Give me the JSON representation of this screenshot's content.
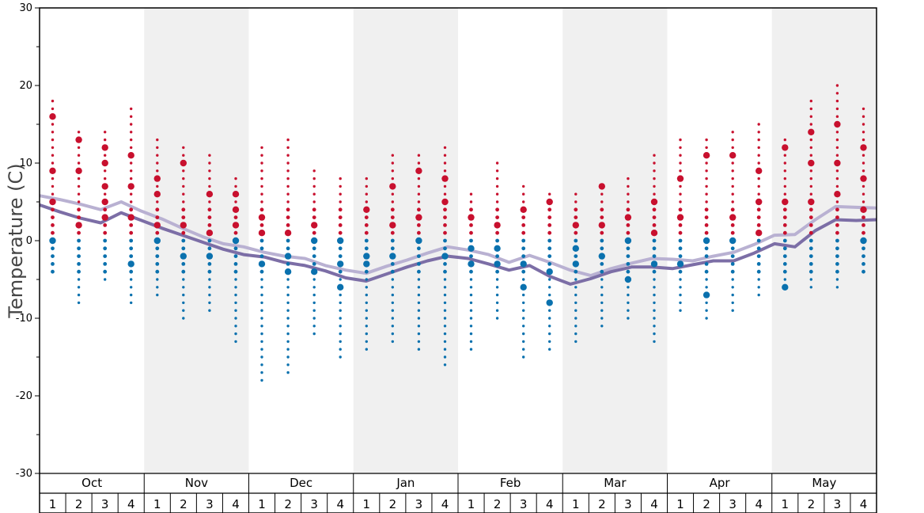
{
  "chart_data": {
    "type": "scatter",
    "title": "",
    "ylabel": "Temperature (C)",
    "xlabel": "",
    "ylim": [
      -30,
      30
    ],
    "yticks": [
      "30",
      "20",
      "10",
      "0",
      "-10",
      "-20",
      "-30"
    ],
    "y_minor_step": 5,
    "grid": false,
    "shaded_months": [
      "Nov",
      "Jan",
      "Mar",
      "May"
    ],
    "months": [
      {
        "label": "Oct",
        "weeks": [
          "1",
          "2",
          "3",
          "4"
        ]
      },
      {
        "label": "Nov",
        "weeks": [
          "1",
          "2",
          "3",
          "4"
        ]
      },
      {
        "label": "Dec",
        "weeks": [
          "1",
          "2",
          "3",
          "4"
        ]
      },
      {
        "label": "Jan",
        "weeks": [
          "1",
          "2",
          "3",
          "4"
        ]
      },
      {
        "label": "Feb",
        "weeks": [
          "1",
          "2",
          "3",
          "4"
        ]
      },
      {
        "label": "Mar",
        "weeks": [
          "1",
          "2",
          "3",
          "4"
        ]
      },
      {
        "label": "Apr",
        "weeks": [
          "1",
          "2",
          "3",
          "4"
        ]
      },
      {
        "label": "May",
        "weeks": [
          "1",
          "2",
          "3",
          "4"
        ]
      }
    ],
    "colors": {
      "warm": "#c8102e",
      "cold": "#0a71ae",
      "line_light": "#b9b1d2",
      "line_dark": "#7c6ea6",
      "shade": "#f0f0f0"
    },
    "series": [
      {
        "kind": "line",
        "values": [
          5.8,
          5.3,
          4.7,
          4.0,
          5.0,
          3.8,
          2.8,
          1.6,
          0.5,
          -0.4,
          -0.8,
          -1.5,
          -2.0,
          -2.3,
          -3.2,
          -3.8,
          -4.2,
          -3.3,
          -2.5,
          -1.6,
          -0.8,
          -1.2,
          -1.8,
          -2.8,
          -1.9,
          -2.8,
          -3.8,
          -4.5,
          -3.6,
          -2.9,
          -2.3,
          -2.4,
          -2.6,
          -2.0,
          -1.5,
          -0.5,
          0.7,
          0.8,
          2.7,
          4.4,
          4.3,
          4.2
        ]
      },
      {
        "kind": "line",
        "values": [
          4.6,
          3.7,
          2.9,
          2.3,
          3.6,
          2.6,
          1.6,
          0.7,
          -0.2,
          -1.1,
          -1.8,
          -2.1,
          -2.8,
          -3.2,
          -3.9,
          -4.8,
          -5.2,
          -4.3,
          -3.4,
          -2.6,
          -2.0,
          -2.3,
          -3.0,
          -3.8,
          -3.2,
          -4.6,
          -5.6,
          -4.9,
          -4.0,
          -3.4,
          -3.4,
          -3.6,
          -3.1,
          -2.6,
          -2.6,
          -1.6,
          -0.4,
          -0.8,
          1.3,
          2.7,
          2.6,
          2.7
        ]
      },
      {
        "kind": "scatter_columns",
        "columns": [
          {
            "max": 18,
            "min": -4,
            "big": [
              16,
              9,
              5,
              0
            ]
          },
          {
            "max": 14,
            "min": -8,
            "big": [
              13,
              9,
              2
            ]
          },
          {
            "max": 14,
            "min": -5,
            "big": [
              12,
              10,
              7,
              5,
              3
            ]
          },
          {
            "max": 17,
            "min": -8,
            "big": [
              11,
              7,
              3,
              -3
            ]
          },
          {
            "max": 13,
            "min": -7,
            "big": [
              8,
              6,
              2,
              0
            ]
          },
          {
            "max": 12,
            "min": -10,
            "big": [
              10,
              2,
              -2
            ]
          },
          {
            "max": 11,
            "min": -9,
            "big": [
              6,
              1,
              -2
            ]
          },
          {
            "max": 8,
            "min": -13,
            "big": [
              6,
              4,
              2,
              0
            ]
          },
          {
            "max": 12,
            "min": -18,
            "big": [
              3,
              1,
              -3
            ]
          },
          {
            "max": 13,
            "min": -17,
            "big": [
              1,
              -2,
              -4
            ]
          },
          {
            "max": 9,
            "min": -12,
            "big": [
              2,
              0,
              -4
            ]
          },
          {
            "max": 8,
            "min": -15,
            "big": [
              0,
              -3,
              -6
            ]
          },
          {
            "max": 8,
            "min": -14,
            "big": [
              4,
              -2,
              -3
            ]
          },
          {
            "max": 11,
            "min": -13,
            "big": [
              7,
              2,
              -2
            ]
          },
          {
            "max": 11,
            "min": -14,
            "big": [
              9,
              3,
              0
            ]
          },
          {
            "max": 12,
            "min": -16,
            "big": [
              8,
              5,
              -2
            ]
          },
          {
            "max": 6,
            "min": -14,
            "big": [
              3,
              -1,
              -3
            ]
          },
          {
            "max": 10,
            "min": -10,
            "big": [
              2,
              -1,
              -3
            ]
          },
          {
            "max": 7,
            "min": -15,
            "big": [
              4,
              -3,
              -6
            ]
          },
          {
            "max": 6,
            "min": -14,
            "big": [
              5,
              -4,
              -8
            ]
          },
          {
            "max": 6,
            "min": -13,
            "big": [
              2,
              -1,
              -3
            ]
          },
          {
            "max": 7,
            "min": -11,
            "big": [
              7,
              2,
              -2
            ]
          },
          {
            "max": 8,
            "min": -10,
            "big": [
              3,
              0,
              -5
            ]
          },
          {
            "max": 11,
            "min": -13,
            "big": [
              5,
              1,
              -3
            ]
          },
          {
            "max": 13,
            "min": -9,
            "big": [
              8,
              3,
              -3
            ]
          },
          {
            "max": 13,
            "min": -10,
            "big": [
              11,
              0,
              -7
            ]
          },
          {
            "max": 14,
            "min": -9,
            "big": [
              11,
              3,
              0
            ]
          },
          {
            "max": 15,
            "min": -7,
            "big": [
              9,
              5,
              1
            ]
          },
          {
            "max": 13,
            "min": -6,
            "big": [
              12,
              5,
              -6
            ]
          },
          {
            "max": 18,
            "min": -6,
            "big": [
              14,
              10,
              5
            ]
          },
          {
            "max": 20,
            "min": -6,
            "big": [
              15,
              10,
              6
            ]
          },
          {
            "max": 17,
            "min": -4,
            "big": [
              12,
              8,
              4,
              0
            ]
          }
        ]
      }
    ]
  }
}
